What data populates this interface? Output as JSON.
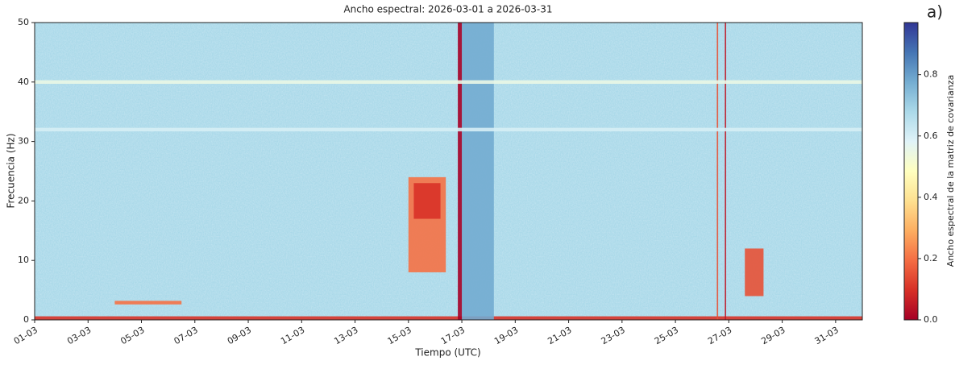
{
  "chart_data": {
    "type": "spectrogram",
    "title": "Ancho espectral: 2026-03-01 a 2026-03-31",
    "xlabel": "Tiempo (UTC)",
    "ylabel": "Frecuencia (Hz)",
    "annotation": "a)",
    "xlim": [
      1,
      32
    ],
    "xticks": [
      {
        "value": 1,
        "label": "01-03"
      },
      {
        "value": 3,
        "label": "03-03"
      },
      {
        "value": 5,
        "label": "05-03"
      },
      {
        "value": 7,
        "label": "07-03"
      },
      {
        "value": 9,
        "label": "09-03"
      },
      {
        "value": 11,
        "label": "11-03"
      },
      {
        "value": 13,
        "label": "13-03"
      },
      {
        "value": 15,
        "label": "15-03"
      },
      {
        "value": 17,
        "label": "17-03"
      },
      {
        "value": 19,
        "label": "19-03"
      },
      {
        "value": 21,
        "label": "21-03"
      },
      {
        "value": 23,
        "label": "23-03"
      },
      {
        "value": 25,
        "label": "25-03"
      },
      {
        "value": 27,
        "label": "27-03"
      },
      {
        "value": 29,
        "label": "29-03"
      },
      {
        "value": 31,
        "label": "31-03"
      }
    ],
    "ylim": [
      0,
      50
    ],
    "yticks": [
      0,
      10,
      20,
      30,
      40,
      50
    ],
    "colormap": "RdYlBu",
    "colorbar_label": "Ancho espectral de la matriz de covarianza",
    "clim": [
      0,
      0.97
    ],
    "cticks": [
      0.0,
      0.2,
      0.4,
      0.6,
      0.8
    ],
    "background_value": 0.68,
    "regions": [
      {
        "x": [
          1,
          32
        ],
        "y": [
          0,
          0.6
        ],
        "value": 0.1
      },
      {
        "x": [
          15,
          16.4
        ],
        "y": [
          8,
          24
        ],
        "value": 0.2
      },
      {
        "x": [
          15.2,
          16.2
        ],
        "y": [
          17,
          23
        ],
        "value": 0.1
      },
      {
        "x": [
          17,
          18.2
        ],
        "y": [
          0,
          50
        ],
        "value": 0.78
      },
      {
        "x": [
          16.85,
          17.0
        ],
        "y": [
          0,
          50
        ],
        "value": 0.0
      },
      {
        "x": [
          26.55,
          26.6
        ],
        "y": [
          0,
          50
        ],
        "value": 0.15
      },
      {
        "x": [
          26.85,
          26.9
        ],
        "y": [
          0,
          50
        ],
        "value": 0.05
      },
      {
        "x": [
          27.6,
          28.3
        ],
        "y": [
          4,
          12
        ],
        "value": 0.15
      },
      {
        "x": [
          4,
          6.5
        ],
        "y": [
          2.6,
          3.2
        ],
        "value": 0.2
      },
      {
        "x": [
          1,
          32
        ],
        "y": [
          39.7,
          40.3
        ],
        "value": 0.55
      },
      {
        "x": [
          1,
          32
        ],
        "y": [
          31.7,
          32.3
        ],
        "value": 0.6
      }
    ]
  }
}
